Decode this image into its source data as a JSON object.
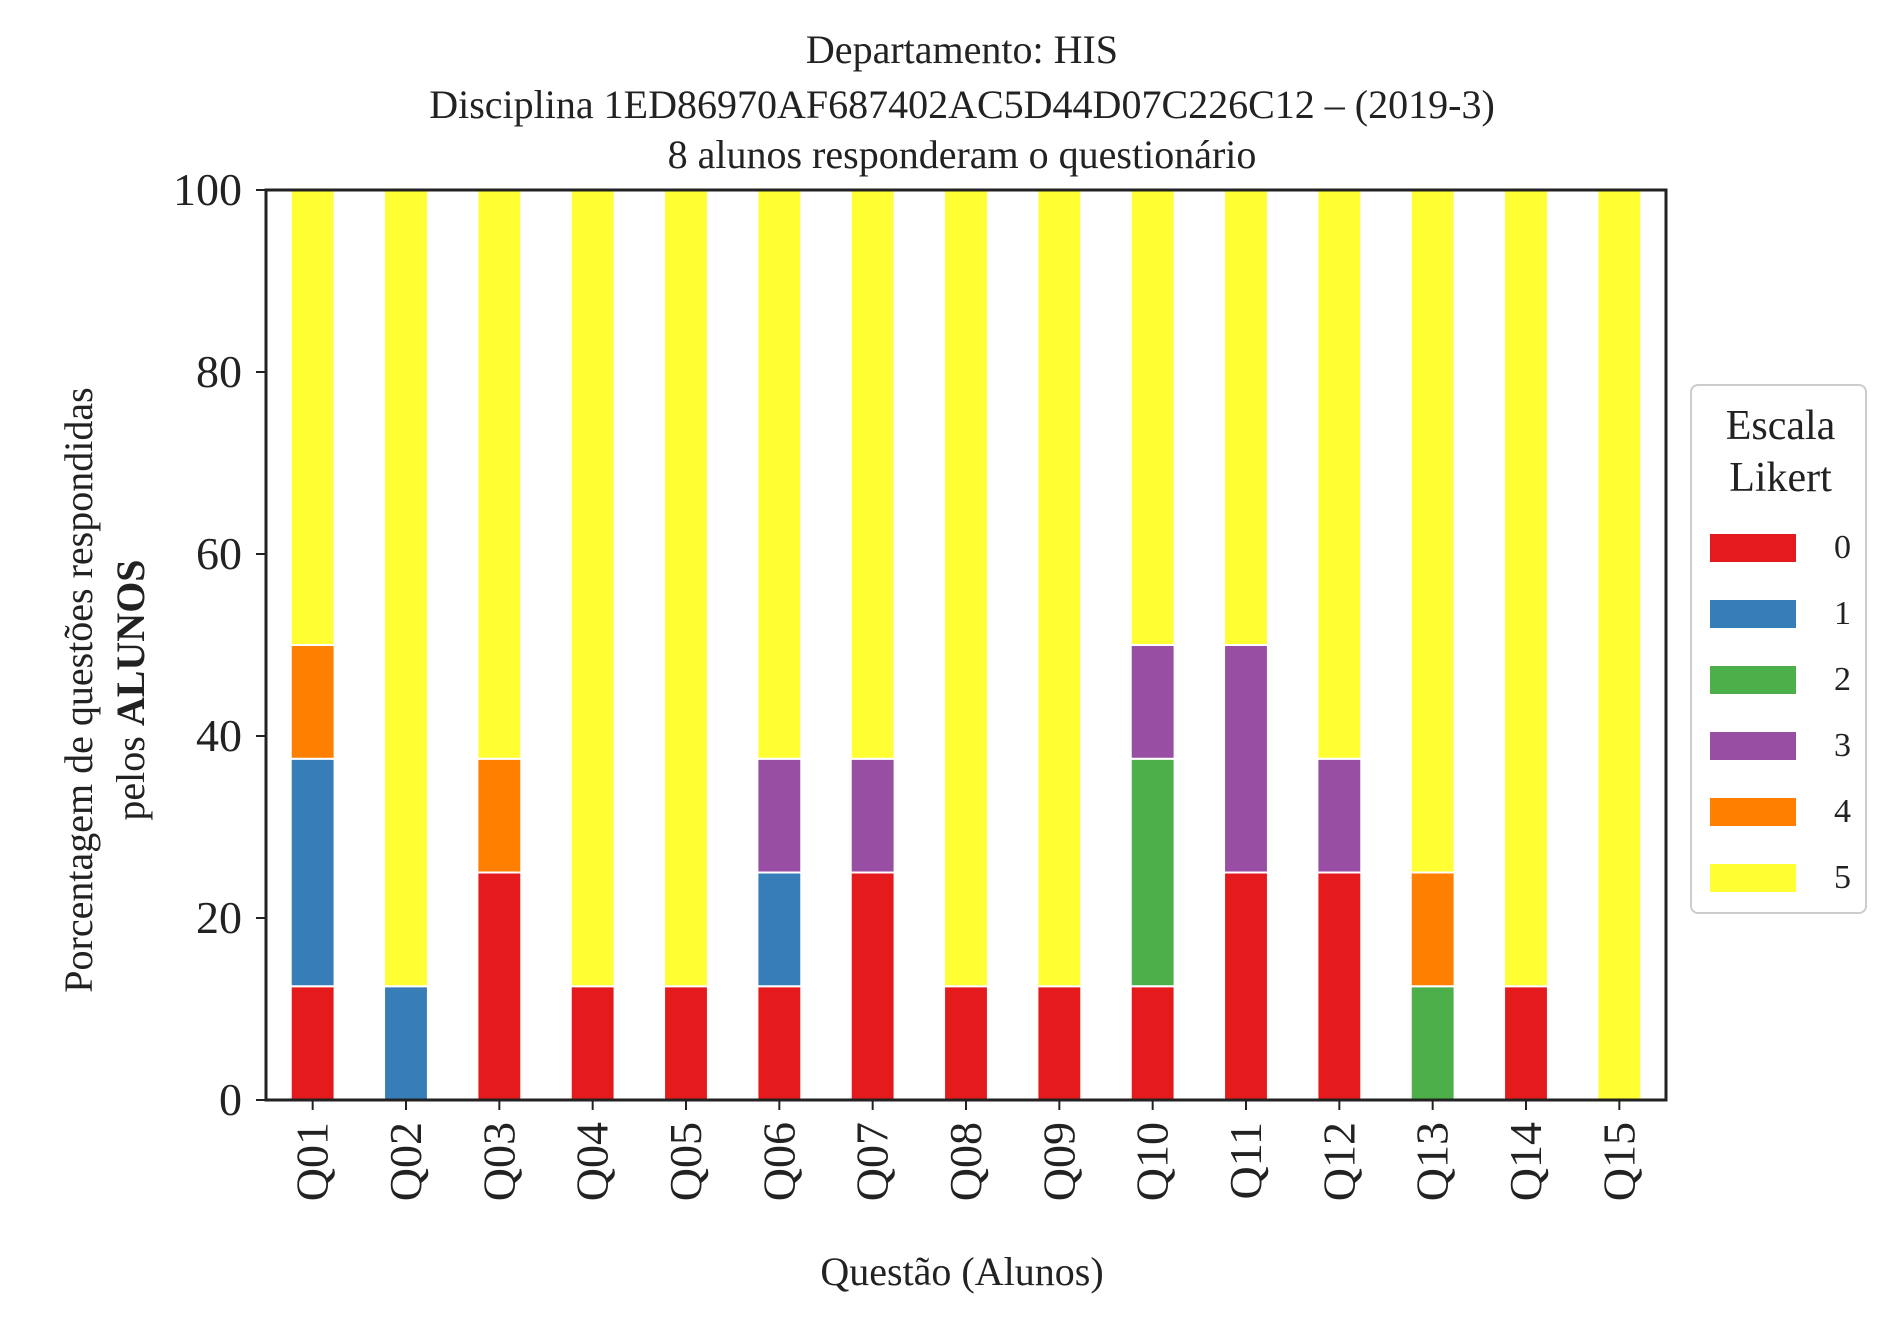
{
  "chart_data": {
    "type": "bar",
    "stacked": true,
    "title_lines": [
      "Departamento: HIS",
      "Disciplina 1ED86970AF687402AC5D44D07C226C12 – (2019-3)",
      "8 alunos responderam o questionário"
    ],
    "xlabel": "Questão (Alunos)",
    "ylabel_line1": "Porcentagem de questões respondidas",
    "ylabel_line2_prefix": "pelos ",
    "ylabel_line2_bold": "ALUNOS",
    "ylim": [
      0,
      100
    ],
    "yticks": [
      "0",
      "20",
      "40",
      "60",
      "80",
      "100"
    ],
    "grid": false,
    "legend_position": "right",
    "legend_title_line1": "Escala",
    "legend_title_line2": "Likert",
    "categories": [
      "Q01",
      "Q02",
      "Q03",
      "Q04",
      "Q05",
      "Q06",
      "Q07",
      "Q08",
      "Q09",
      "Q10",
      "Q11",
      "Q12",
      "Q13",
      "Q14",
      "Q15"
    ],
    "series": [
      {
        "name": "0",
        "color": "#e41a1c",
        "values": [
          12.5,
          0,
          25,
          12.5,
          12.5,
          12.5,
          25,
          12.5,
          12.5,
          12.5,
          25,
          25,
          0,
          12.5,
          0
        ]
      },
      {
        "name": "1",
        "color": "#377eb8",
        "values": [
          25,
          12.5,
          0,
          0,
          0,
          12.5,
          0,
          0,
          0,
          0,
          0,
          0,
          0,
          0,
          0
        ]
      },
      {
        "name": "2",
        "color": "#4daf4a",
        "values": [
          0,
          0,
          0,
          0,
          0,
          0,
          0,
          0,
          0,
          25,
          0,
          0,
          12.5,
          0,
          0
        ]
      },
      {
        "name": "3",
        "color": "#984ea3",
        "values": [
          0,
          0,
          0,
          0,
          0,
          12.5,
          12.5,
          0,
          0,
          12.5,
          25,
          12.5,
          0,
          0,
          0
        ]
      },
      {
        "name": "4",
        "color": "#ff7f00",
        "values": [
          12.5,
          0,
          12.5,
          0,
          0,
          0,
          0,
          0,
          0,
          0,
          0,
          0,
          12.5,
          0,
          0
        ]
      },
      {
        "name": "5",
        "color": "#ffff33",
        "values": [
          50,
          87.5,
          62.5,
          87.5,
          87.5,
          62.5,
          62.5,
          87.5,
          87.5,
          50,
          50,
          62.5,
          75,
          87.5,
          100
        ]
      }
    ]
  }
}
